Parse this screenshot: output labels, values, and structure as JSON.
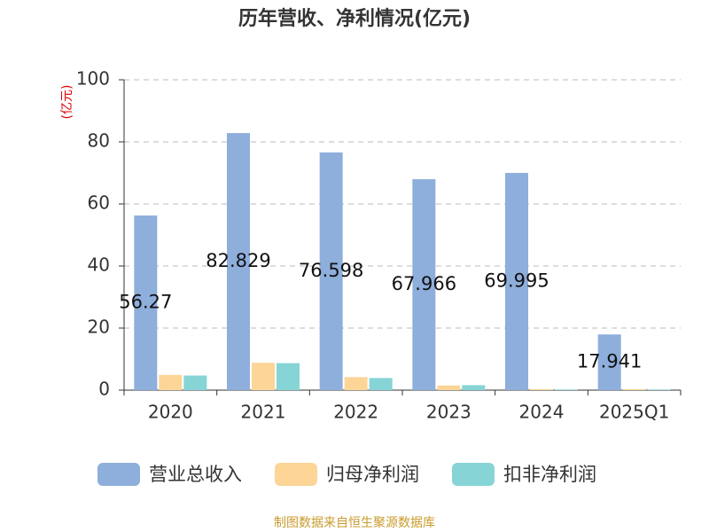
{
  "chart_data": {
    "type": "bar",
    "title": "历年营收、净利情况(亿元)",
    "y_label": "(亿元)",
    "source": "制图数据来自恒生聚源数据库",
    "categories": [
      "2020",
      "2021",
      "2022",
      "2023",
      "2024",
      "2025Q1"
    ],
    "series": [
      {
        "name": "营业总收入",
        "color": "#8eaedb",
        "values": [
          56.27,
          82.829,
          76.598,
          67.966,
          69.995,
          17.941
        ],
        "labels": true
      },
      {
        "name": "归母净利润",
        "color": "#fcd597",
        "values": [
          4.9,
          8.8,
          4.2,
          1.5,
          0.3,
          0.3
        ],
        "labels": false
      },
      {
        "name": "扣非净利润",
        "color": "#86d4d6",
        "values": [
          4.7,
          8.7,
          3.9,
          1.6,
          0.2,
          0.2
        ],
        "labels": false
      }
    ],
    "ylim": [
      0,
      100
    ],
    "yticks": [
      0,
      20,
      40,
      60,
      80,
      100
    ],
    "grid": true
  }
}
